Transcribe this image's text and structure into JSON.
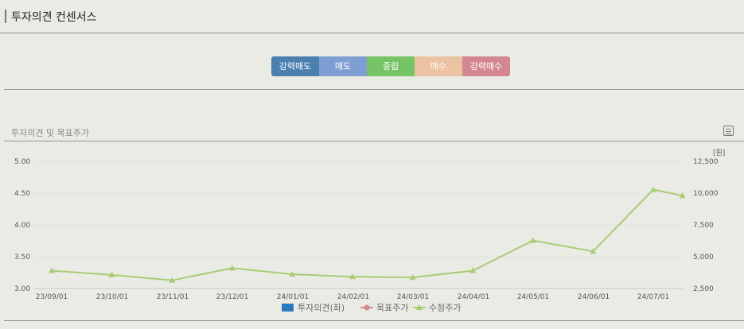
{
  "header": {
    "title": "투자의견 컨센서스"
  },
  "opinion_scale": [
    {
      "label": "강력매도",
      "color": "#4a7fb0"
    },
    {
      "label": "매도",
      "color": "#7f9fd4"
    },
    {
      "label": "중립",
      "color": "#76c466"
    },
    {
      "label": "매수",
      "color": "#ebc2a2"
    },
    {
      "label": "강력매수",
      "color": "#d4868f"
    }
  ],
  "section": {
    "title": "투자의견 및 목표주가"
  },
  "chart_data": {
    "type": "line",
    "x_categories": [
      "23/09/01",
      "23/10/01",
      "23/11/01",
      "23/12/01",
      "24/01/01",
      "24/02/01",
      "24/03/01",
      "24/04/01",
      "24/05/01",
      "24/06/01",
      "24/07/01"
    ],
    "y_left": {
      "ticks": [
        "5.00",
        "4.50",
        "4.00",
        "3.50",
        "3.00"
      ],
      "range": [
        3.0,
        5.0
      ]
    },
    "y_right": {
      "ticks": [
        "12,500",
        "10,000",
        "7,500",
        "5,000",
        "2,500"
      ],
      "range": [
        2500,
        12500
      ],
      "unit": "[원]"
    },
    "series": [
      {
        "name": "수정주가",
        "axis": "right",
        "color": "#a8cc74",
        "points": [
          {
            "x": "2023-09-01",
            "y": 3900
          },
          {
            "x": "2023-10-01",
            "y": 3570
          },
          {
            "x": "2023-11-01",
            "y": 3140
          },
          {
            "x": "2023-12-01",
            "y": 4100
          },
          {
            "x": "2024-01-01",
            "y": 3620
          },
          {
            "x": "2024-02-01",
            "y": 3420
          },
          {
            "x": "2024-03-01",
            "y": 3370
          },
          {
            "x": "2024-04-01",
            "y": 3900
          },
          {
            "x": "2024-05-01",
            "y": 6270
          },
          {
            "x": "2024-06-01",
            "y": 5420
          },
          {
            "x": "2024-07-01",
            "y": 10280
          },
          {
            "x": "2024-07-16",
            "y": 9800
          }
        ]
      }
    ],
    "legend": [
      {
        "name": "투자의견(좌)",
        "color": "#2a78c0",
        "marker": "square"
      },
      {
        "name": "목표주가",
        "color": "#d08a8e",
        "marker": "circle-line"
      },
      {
        "name": "수정주가",
        "color": "#a8cc74",
        "marker": "triangle-line"
      }
    ],
    "legend_position": "bottom-center",
    "grid": "horizontal"
  }
}
